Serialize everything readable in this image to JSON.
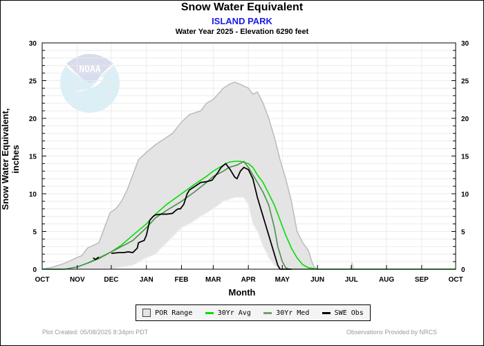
{
  "chart_data": {
    "type": "line",
    "title": "Snow Water Equivalent",
    "subtitle": "ISLAND PARK",
    "subtitle2": "Water Year 2025 -  Elevation 6290 feet",
    "xlabel": "Month",
    "ylabel": "Snow Water Equivalent, inches",
    "ylim": [
      0,
      30
    ],
    "yticks": [
      0,
      5,
      10,
      15,
      20,
      25,
      30
    ],
    "x_unit": "day of water year (Oct 1 = 0)",
    "xlim": [
      0,
      365
    ],
    "month_ticks": [
      {
        "label": "OCT",
        "day": 0
      },
      {
        "label": "NOV",
        "day": 31
      },
      {
        "label": "DEC",
        "day": 61
      },
      {
        "label": "JAN",
        "day": 92
      },
      {
        "label": "FEB",
        "day": 123
      },
      {
        "label": "MAR",
        "day": 151
      },
      {
        "label": "APR",
        "day": 182
      },
      {
        "label": "MAY",
        "day": 212
      },
      {
        "label": "JUN",
        "day": 243
      },
      {
        "label": "JUL",
        "day": 273
      },
      {
        "label": "AUG",
        "day": 304
      },
      {
        "label": "SEP",
        "day": 335
      },
      {
        "label": "OCT",
        "day": 365
      }
    ],
    "grid": true,
    "legend_placement": "bottom",
    "legend": [
      "POR Range",
      "30Yr Avg",
      "30Yr Med",
      "SWE Obs"
    ],
    "colors": {
      "por_fill": "#e4e4e4",
      "por_edge": "#bbbbbb",
      "avg": "#00dd00",
      "med": "#4e8a4e",
      "obs": "#000000"
    },
    "series": [
      {
        "name": "POR Range max",
        "x": [
          0,
          10,
          20,
          30,
          35,
          40,
          50,
          55,
          60,
          65,
          70,
          75,
          80,
          85,
          92,
          100,
          110,
          115,
          123,
          130,
          140,
          145,
          151,
          160,
          165,
          170,
          175,
          182,
          186,
          190,
          195,
          200,
          205,
          210,
          215,
          220,
          225,
          230,
          235,
          238,
          240,
          243
        ],
        "values": [
          0,
          0.3,
          0.8,
          1.5,
          1.8,
          2.8,
          3.5,
          5.5,
          7.5,
          8.0,
          9.0,
          10.5,
          12.5,
          14.5,
          15.5,
          16.5,
          17.5,
          18.0,
          19.5,
          20.5,
          21.0,
          22.0,
          22.5,
          24.0,
          24.5,
          24.8,
          24.5,
          24.0,
          23.2,
          23.5,
          22.0,
          20.0,
          17.5,
          14.5,
          12.0,
          9.0,
          5.0,
          3.5,
          2.5,
          1.0,
          0.3,
          0
        ]
      },
      {
        "name": "POR Range min",
        "x": [
          0,
          60,
          80,
          92,
          100,
          110,
          123,
          130,
          140,
          151,
          160,
          170,
          178,
          182,
          186,
          190,
          195,
          200,
          205,
          210
        ],
        "values": [
          0,
          0,
          0.5,
          1.5,
          2.0,
          3.5,
          5.5,
          6.0,
          7.0,
          8.0,
          9.0,
          9.5,
          9.5,
          8.5,
          6.0,
          5.0,
          3.0,
          1.5,
          0.5,
          0
        ]
      },
      {
        "name": "30Yr Avg",
        "x": [
          0,
          20,
          31,
          40,
          50,
          61,
          70,
          80,
          92,
          100,
          110,
          123,
          135,
          145,
          151,
          160,
          165,
          170,
          175,
          182,
          186,
          190,
          195,
          200,
          205,
          210,
          215,
          220,
          225,
          230,
          235,
          243,
          365
        ],
        "values": [
          0,
          0,
          0.3,
          0.8,
          1.5,
          2.3,
          3.2,
          4.5,
          6.0,
          7.3,
          8.6,
          10.0,
          11.3,
          12.3,
          13.0,
          13.8,
          14.2,
          14.3,
          14.3,
          14.0,
          13.5,
          12.5,
          11.5,
          10.0,
          8.5,
          6.5,
          4.5,
          2.8,
          1.5,
          0.6,
          0.2,
          0,
          0
        ]
      },
      {
        "name": "30Yr Med",
        "x": [
          0,
          20,
          31,
          40,
          50,
          61,
          70,
          80,
          92,
          100,
          110,
          123,
          135,
          145,
          151,
          160,
          165,
          172,
          178,
          182,
          186,
          190,
          195,
          200,
          205,
          208,
          212,
          215,
          218,
          365
        ],
        "values": [
          0,
          0,
          0.3,
          0.8,
          1.4,
          2.3,
          3.0,
          3.8,
          5.5,
          6.8,
          7.8,
          9.0,
          10.3,
          11.5,
          12.3,
          13.0,
          13.5,
          13.8,
          14.3,
          13.5,
          12.5,
          11.5,
          10.2,
          8.5,
          5.5,
          3.0,
          1.0,
          0.2,
          0,
          0
        ]
      },
      {
        "name": "SWE Obs",
        "x": [
          45,
          47,
          48,
          50,
          61,
          68,
          72,
          76,
          80,
          84,
          85,
          88,
          90,
          92,
          95,
          98,
          100,
          105,
          110,
          115,
          118,
          120,
          122,
          125,
          128,
          130,
          135,
          140,
          145,
          150,
          155,
          158,
          162,
          166,
          170,
          172,
          175,
          178,
          182,
          186,
          190,
          195,
          200,
          205,
          208,
          210,
          212,
          214,
          220
        ],
        "values": [
          1.5,
          1.3,
          1.4,
          1.6,
          2.1,
          2.2,
          2.2,
          2.3,
          2.2,
          2.8,
          3.5,
          3.7,
          3.8,
          4.5,
          6.5,
          7.0,
          7.2,
          7.3,
          7.3,
          7.4,
          7.8,
          8.0,
          8.0,
          8.6,
          10.0,
          10.5,
          11.0,
          11.5,
          11.6,
          11.8,
          12.8,
          13.5,
          14.0,
          13.2,
          12.2,
          12.0,
          13.0,
          13.5,
          13.2,
          12.0,
          9.5,
          7.0,
          4.5,
          2.0,
          0.5,
          0,
          0,
          0,
          0
        ]
      }
    ]
  },
  "legend": {
    "por_range": "POR Range",
    "avg": "30Yr Avg",
    "med": "30Yr Med",
    "obs": "SWE Obs"
  },
  "footer": {
    "created": "Plot Created: 05/08/2025 8:34pm PDT",
    "source": "Observations Provided by NRCS"
  },
  "logo": {
    "text": "NOAA"
  }
}
